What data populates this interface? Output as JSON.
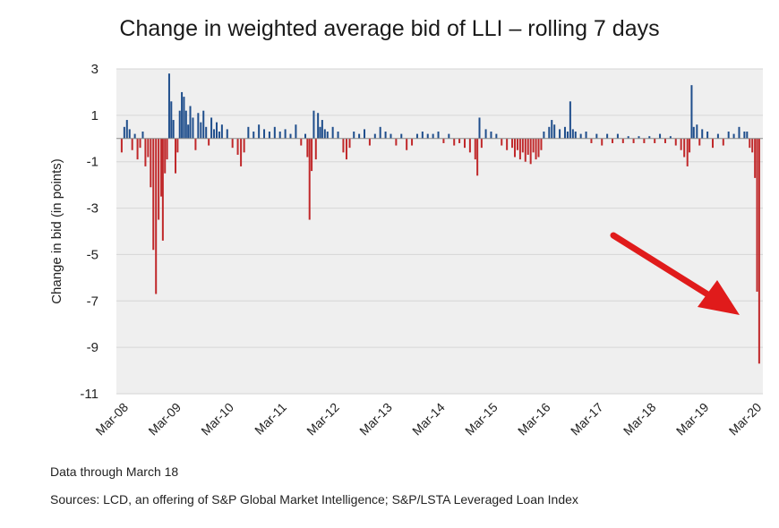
{
  "chart_data": {
    "type": "bar",
    "title": "Change in weighted average bid of LLI – rolling 7 days",
    "ylabel": "Change in bid (in points)",
    "xlabel": "",
    "ylim": [
      -11,
      3
    ],
    "yticks": [
      3,
      1,
      -1,
      -3,
      -5,
      -7,
      -9,
      -11
    ],
    "xlim": [
      2008.0,
      2020.25
    ],
    "xticks": [
      {
        "label": "Mar-08",
        "x": 2008.17
      },
      {
        "label": "Mar-09",
        "x": 2009.17
      },
      {
        "label": "Mar-10",
        "x": 2010.17
      },
      {
        "label": "Mar-11",
        "x": 2011.17
      },
      {
        "label": "Mar-12",
        "x": 2012.17
      },
      {
        "label": "Mar-13",
        "x": 2013.17
      },
      {
        "label": "Mar-14",
        "x": 2014.17
      },
      {
        "label": "Mar-15",
        "x": 2015.17
      },
      {
        "label": "Mar-16",
        "x": 2016.17
      },
      {
        "label": "Mar-17",
        "x": 2017.17
      },
      {
        "label": "Mar-18",
        "x": 2018.17
      },
      {
        "label": "Mar-19",
        "x": 2019.17
      },
      {
        "label": "Mar-20",
        "x": 2020.17
      }
    ],
    "grid": true,
    "colors": {
      "positive": "#1f4e8c",
      "negative": "#c0282a",
      "plot_bg": "#efefef",
      "grid": "#d6d6d6",
      "arrow": "#e01b1b"
    },
    "series": [
      {
        "values_note_x": "x in fractional years",
        "points": [
          [
            2008.1,
            -0.6
          ],
          [
            2008.15,
            0.5
          ],
          [
            2008.2,
            0.8
          ],
          [
            2008.25,
            0.4
          ],
          [
            2008.3,
            -0.5
          ],
          [
            2008.35,
            0.2
          ],
          [
            2008.4,
            -0.9
          ],
          [
            2008.45,
            -0.4
          ],
          [
            2008.5,
            0.3
          ],
          [
            2008.55,
            -1.2
          ],
          [
            2008.6,
            -0.8
          ],
          [
            2008.65,
            -2.1
          ],
          [
            2008.7,
            -4.8
          ],
          [
            2008.75,
            -6.7
          ],
          [
            2008.8,
            -3.5
          ],
          [
            2008.85,
            -2.5
          ],
          [
            2008.88,
            -4.4
          ],
          [
            2008.92,
            -1.5
          ],
          [
            2008.96,
            -0.9
          ],
          [
            2009.0,
            2.8
          ],
          [
            2009.04,
            1.6
          ],
          [
            2009.08,
            0.8
          ],
          [
            2009.12,
            -1.5
          ],
          [
            2009.16,
            -0.6
          ],
          [
            2009.2,
            1.2
          ],
          [
            2009.24,
            2.0
          ],
          [
            2009.28,
            1.8
          ],
          [
            2009.32,
            1.2
          ],
          [
            2009.36,
            0.6
          ],
          [
            2009.4,
            1.4
          ],
          [
            2009.45,
            0.9
          ],
          [
            2009.5,
            -0.5
          ],
          [
            2009.55,
            1.1
          ],
          [
            2009.6,
            0.7
          ],
          [
            2009.65,
            1.2
          ],
          [
            2009.7,
            0.5
          ],
          [
            2009.75,
            -0.3
          ],
          [
            2009.8,
            0.9
          ],
          [
            2009.85,
            0.4
          ],
          [
            2009.9,
            0.7
          ],
          [
            2009.95,
            0.3
          ],
          [
            2010.0,
            0.6
          ],
          [
            2010.1,
            0.4
          ],
          [
            2010.2,
            -0.4
          ],
          [
            2010.3,
            -0.7
          ],
          [
            2010.36,
            -1.2
          ],
          [
            2010.42,
            -0.6
          ],
          [
            2010.5,
            0.5
          ],
          [
            2010.6,
            0.3
          ],
          [
            2010.7,
            0.6
          ],
          [
            2010.8,
            0.4
          ],
          [
            2010.9,
            0.3
          ],
          [
            2011.0,
            0.5
          ],
          [
            2011.1,
            0.3
          ],
          [
            2011.2,
            0.4
          ],
          [
            2011.3,
            0.2
          ],
          [
            2011.4,
            0.6
          ],
          [
            2011.5,
            -0.3
          ],
          [
            2011.58,
            0.2
          ],
          [
            2011.62,
            -0.8
          ],
          [
            2011.66,
            -3.5
          ],
          [
            2011.7,
            -1.4
          ],
          [
            2011.74,
            1.2
          ],
          [
            2011.78,
            -0.9
          ],
          [
            2011.82,
            1.1
          ],
          [
            2011.86,
            0.5
          ],
          [
            2011.9,
            0.8
          ],
          [
            2011.95,
            0.4
          ],
          [
            2012.0,
            0.3
          ],
          [
            2012.1,
            0.5
          ],
          [
            2012.2,
            0.3
          ],
          [
            2012.3,
            -0.6
          ],
          [
            2012.36,
            -0.9
          ],
          [
            2012.42,
            -0.4
          ],
          [
            2012.5,
            0.3
          ],
          [
            2012.6,
            0.2
          ],
          [
            2012.7,
            0.4
          ],
          [
            2012.8,
            -0.3
          ],
          [
            2012.9,
            0.2
          ],
          [
            2013.0,
            0.5
          ],
          [
            2013.1,
            0.3
          ],
          [
            2013.2,
            0.2
          ],
          [
            2013.3,
            -0.3
          ],
          [
            2013.4,
            0.2
          ],
          [
            2013.5,
            -0.5
          ],
          [
            2013.6,
            -0.3
          ],
          [
            2013.7,
            0.2
          ],
          [
            2013.8,
            0.3
          ],
          [
            2013.9,
            0.2
          ],
          [
            2014.0,
            0.2
          ],
          [
            2014.1,
            0.3
          ],
          [
            2014.2,
            -0.2
          ],
          [
            2014.3,
            0.2
          ],
          [
            2014.4,
            -0.3
          ],
          [
            2014.5,
            -0.2
          ],
          [
            2014.6,
            -0.4
          ],
          [
            2014.7,
            -0.6
          ],
          [
            2014.8,
            -0.9
          ],
          [
            2014.84,
            -1.6
          ],
          [
            2014.88,
            0.9
          ],
          [
            2014.92,
            -0.4
          ],
          [
            2015.0,
            0.4
          ],
          [
            2015.1,
            0.3
          ],
          [
            2015.2,
            0.2
          ],
          [
            2015.3,
            -0.3
          ],
          [
            2015.4,
            -0.5
          ],
          [
            2015.5,
            -0.4
          ],
          [
            2015.55,
            -0.8
          ],
          [
            2015.6,
            -0.5
          ],
          [
            2015.65,
            -0.9
          ],
          [
            2015.7,
            -0.6
          ],
          [
            2015.75,
            -1.0
          ],
          [
            2015.8,
            -0.7
          ],
          [
            2015.85,
            -1.1
          ],
          [
            2015.9,
            -0.6
          ],
          [
            2015.95,
            -0.9
          ],
          [
            2016.0,
            -0.8
          ],
          [
            2016.05,
            -0.5
          ],
          [
            2016.1,
            0.3
          ],
          [
            2016.2,
            0.5
          ],
          [
            2016.25,
            0.8
          ],
          [
            2016.3,
            0.6
          ],
          [
            2016.4,
            0.4
          ],
          [
            2016.5,
            0.5
          ],
          [
            2016.55,
            0.3
          ],
          [
            2016.6,
            1.6
          ],
          [
            2016.65,
            0.4
          ],
          [
            2016.7,
            0.3
          ],
          [
            2016.8,
            0.2
          ],
          [
            2016.9,
            0.3
          ],
          [
            2017.0,
            -0.2
          ],
          [
            2017.1,
            0.2
          ],
          [
            2017.2,
            -0.3
          ],
          [
            2017.3,
            0.2
          ],
          [
            2017.4,
            -0.2
          ],
          [
            2017.5,
            0.2
          ],
          [
            2017.6,
            -0.2
          ],
          [
            2017.7,
            0.1
          ],
          [
            2017.8,
            -0.2
          ],
          [
            2017.9,
            0.1
          ],
          [
            2018.0,
            -0.2
          ],
          [
            2018.1,
            0.1
          ],
          [
            2018.2,
            -0.2
          ],
          [
            2018.3,
            0.2
          ],
          [
            2018.4,
            -0.2
          ],
          [
            2018.5,
            0.1
          ],
          [
            2018.6,
            -0.3
          ],
          [
            2018.7,
            -0.5
          ],
          [
            2018.76,
            -0.8
          ],
          [
            2018.82,
            -1.2
          ],
          [
            2018.86,
            -0.6
          ],
          [
            2018.9,
            2.3
          ],
          [
            2018.94,
            0.5
          ],
          [
            2019.0,
            0.6
          ],
          [
            2019.05,
            -0.3
          ],
          [
            2019.1,
            0.4
          ],
          [
            2019.2,
            0.3
          ],
          [
            2019.3,
            -0.4
          ],
          [
            2019.4,
            0.2
          ],
          [
            2019.5,
            -0.3
          ],
          [
            2019.6,
            0.3
          ],
          [
            2019.7,
            0.2
          ],
          [
            2019.8,
            0.5
          ],
          [
            2019.9,
            0.3
          ],
          [
            2019.95,
            0.3
          ],
          [
            2020.0,
            -0.4
          ],
          [
            2020.05,
            -0.6
          ],
          [
            2020.1,
            -1.7
          ],
          [
            2020.14,
            -6.6
          ],
          [
            2020.18,
            -9.7
          ]
        ]
      }
    ]
  },
  "footer": {
    "note": "Data through March 18",
    "sources": "Sources: LCD,  an offering of S&P Global Market Intelligence; S&P/LSTA  Leveraged Loan Index"
  }
}
